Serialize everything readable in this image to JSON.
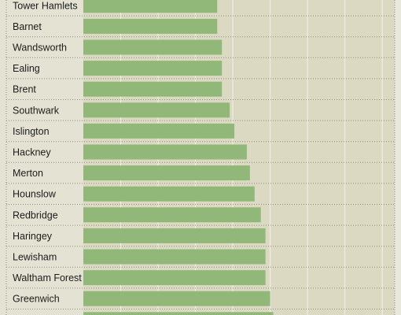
{
  "chart_data": {
    "type": "bar",
    "orientation": "horizontal",
    "title": "",
    "xlabel": "",
    "ylabel": "",
    "grid": true,
    "xlim": [
      0,
      100
    ],
    "categories": [
      "Tower Hamlets",
      "Barnet",
      "Wandsworth",
      "Ealing",
      "Brent",
      "Southwark",
      "Islington",
      "Hackney",
      "Merton",
      "Hounslow",
      "Redbridge",
      "Haringey",
      "Lewisham",
      "Waltham Forest",
      "Greenwich",
      ""
    ],
    "values": [
      43,
      43,
      44.5,
      44.5,
      44.5,
      47,
      48.5,
      52.5,
      53.5,
      55,
      57,
      58.5,
      58.5,
      58.5,
      60,
      61
    ],
    "colors": {
      "bar": "#91b878",
      "track": "#dbd9c2",
      "background": "#e9e8dc",
      "label_panel": "#e3e2d3",
      "grid": "#f3f2ea"
    }
  }
}
